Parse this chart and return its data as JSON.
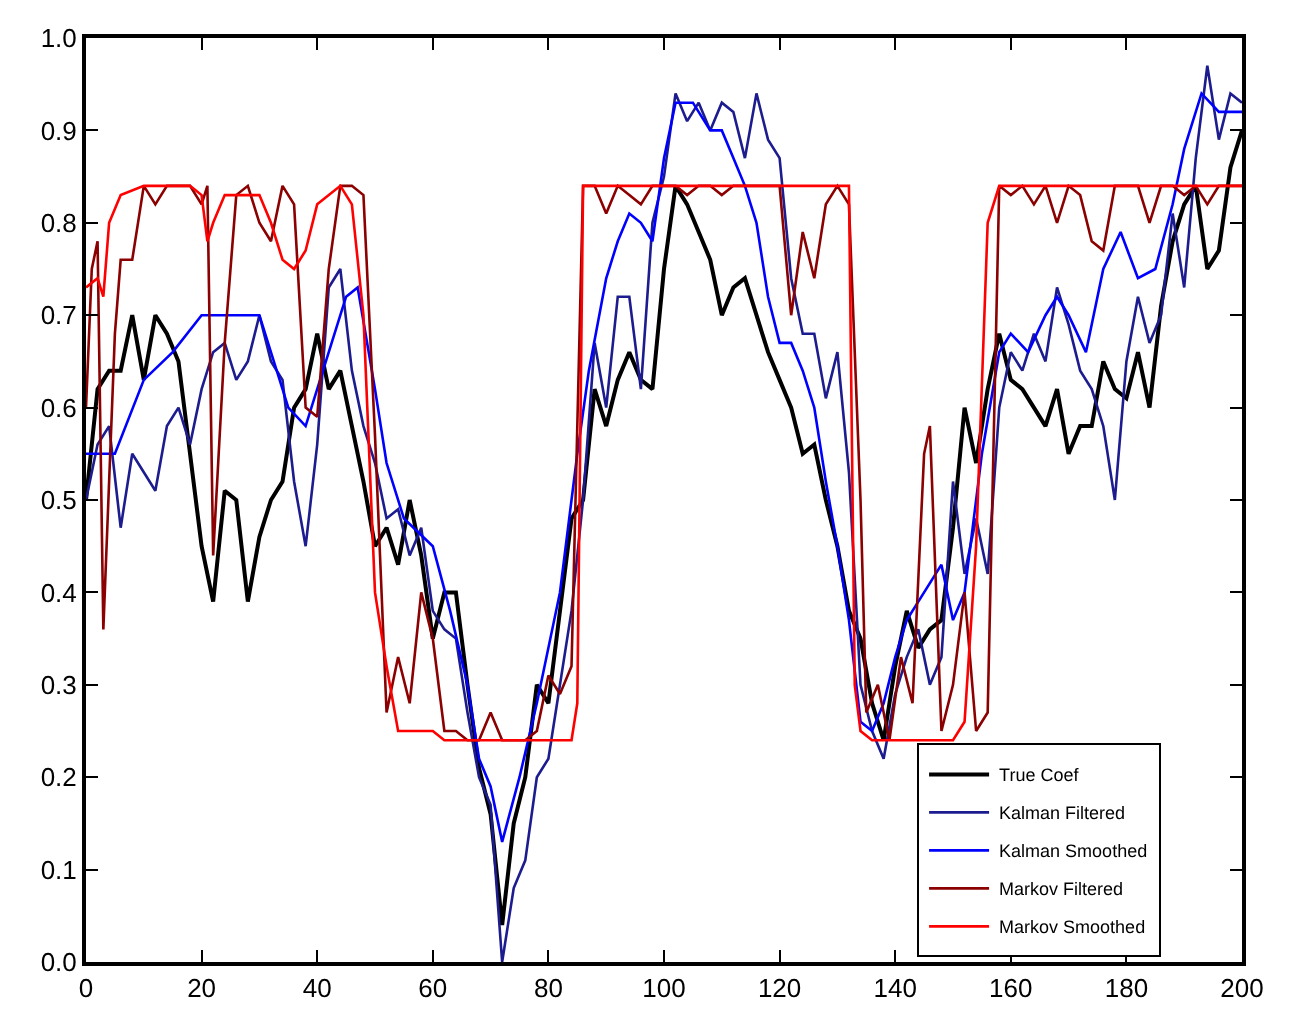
{
  "chart_data": {
    "type": "line",
    "xlim": [
      0,
      200
    ],
    "xticks": [
      0,
      20,
      40,
      60,
      80,
      100,
      120,
      140,
      160,
      180,
      200
    ],
    "ylim": [
      0,
      1
    ],
    "yticks": [
      {
        "value": 0,
        "label": "0.0"
      },
      0.1,
      0.2,
      0.3,
      0.4,
      0.5,
      0.6,
      0.7,
      0.8,
      0.9,
      {
        "value": 1,
        "label": "1.0"
      }
    ],
    "legend": "bottom right",
    "marker": "none",
    "line_style": "solid",
    "series": [
      {
        "name": "True Coef",
        "color": "#000000",
        "x": [
          0,
          2,
          4,
          6,
          8,
          10,
          12,
          14,
          16,
          18,
          20,
          22,
          24,
          26,
          28,
          30,
          32,
          34,
          36,
          38,
          40,
          42,
          44,
          46,
          48,
          50,
          52,
          54,
          56,
          58,
          60,
          62,
          64,
          66,
          68,
          70,
          72,
          74,
          76,
          78,
          80,
          82,
          84,
          86,
          88,
          90,
          92,
          94,
          96,
          98,
          100,
          102,
          104,
          106,
          108,
          110,
          112,
          114,
          116,
          118,
          120,
          122,
          124,
          126,
          128,
          130,
          132,
          134,
          136,
          138,
          140,
          142,
          144,
          146,
          148,
          150,
          152,
          154,
          156,
          158,
          160,
          162,
          164,
          166,
          168,
          170,
          172,
          174,
          176,
          178,
          180,
          182,
          184,
          186,
          188,
          190,
          192,
          194,
          196,
          198,
          200
        ],
        "values": [
          0.5,
          0.62,
          0.64,
          0.64,
          0.7,
          0.63,
          0.7,
          0.68,
          0.65,
          0.55,
          0.45,
          0.39,
          0.51,
          0.5,
          0.39,
          0.46,
          0.5,
          0.52,
          0.6,
          0.62,
          0.68,
          0.62,
          0.64,
          0.58,
          0.52,
          0.45,
          0.47,
          0.43,
          0.5,
          0.44,
          0.35,
          0.4,
          0.4,
          0.3,
          0.21,
          0.16,
          0.04,
          0.15,
          0.2,
          0.3,
          0.28,
          0.38,
          0.48,
          0.5,
          0.62,
          0.58,
          0.63,
          0.66,
          0.63,
          0.62,
          0.75,
          0.84,
          0.82,
          0.79,
          0.76,
          0.7,
          0.73,
          0.74,
          0.7,
          0.66,
          0.63,
          0.6,
          0.55,
          0.56,
          0.5,
          0.45,
          0.38,
          0.35,
          0.28,
          0.24,
          0.32,
          0.38,
          0.34,
          0.36,
          0.37,
          0.47,
          0.6,
          0.54,
          0.62,
          0.68,
          0.63,
          0.62,
          0.6,
          0.58,
          0.62,
          0.55,
          0.58,
          0.58,
          0.65,
          0.62,
          0.61,
          0.66,
          0.6,
          0.71,
          0.78,
          0.82,
          0.84,
          0.75,
          0.77,
          0.86,
          0.9
        ]
      },
      {
        "name": "Kalman Filtered",
        "color": "#1c1c8f",
        "x": [
          0,
          2,
          4,
          6,
          8,
          10,
          12,
          14,
          16,
          18,
          20,
          22,
          24,
          26,
          28,
          30,
          32,
          34,
          36,
          38,
          40,
          42,
          44,
          46,
          48,
          50,
          52,
          54,
          56,
          58,
          60,
          62,
          64,
          66,
          68,
          70,
          72,
          74,
          76,
          78,
          80,
          82,
          84,
          86,
          88,
          90,
          92,
          94,
          96,
          98,
          100,
          102,
          104,
          106,
          108,
          110,
          112,
          114,
          116,
          118,
          120,
          122,
          124,
          126,
          128,
          130,
          132,
          134,
          136,
          138,
          140,
          142,
          144,
          146,
          148,
          150,
          152,
          154,
          156,
          158,
          160,
          162,
          164,
          166,
          168,
          170,
          172,
          174,
          176,
          178,
          180,
          182,
          184,
          186,
          188,
          190,
          192,
          194,
          196,
          198,
          200
        ],
        "values": [
          0.5,
          0.56,
          0.58,
          0.47,
          0.55,
          0.53,
          0.51,
          0.58,
          0.6,
          0.56,
          0.62,
          0.66,
          0.67,
          0.63,
          0.65,
          0.7,
          0.65,
          0.63,
          0.52,
          0.45,
          0.56,
          0.73,
          0.75,
          0.64,
          0.58,
          0.54,
          0.48,
          0.49,
          0.44,
          0.47,
          0.38,
          0.36,
          0.35,
          0.27,
          0.2,
          0.17,
          0.0,
          0.08,
          0.11,
          0.2,
          0.22,
          0.3,
          0.38,
          0.5,
          0.67,
          0.6,
          0.72,
          0.72,
          0.62,
          0.8,
          0.85,
          0.94,
          0.91,
          0.93,
          0.9,
          0.93,
          0.92,
          0.87,
          0.94,
          0.89,
          0.87,
          0.74,
          0.68,
          0.68,
          0.61,
          0.66,
          0.53,
          0.3,
          0.25,
          0.22,
          0.29,
          0.33,
          0.36,
          0.3,
          0.33,
          0.52,
          0.42,
          0.48,
          0.42,
          0.6,
          0.66,
          0.64,
          0.68,
          0.65,
          0.73,
          0.69,
          0.64,
          0.62,
          0.58,
          0.5,
          0.65,
          0.72,
          0.67,
          0.7,
          0.81,
          0.73,
          0.87,
          0.97,
          0.89,
          0.94,
          0.93
        ]
      },
      {
        "name": "Kalman Smoothed",
        "color": "#0000ff",
        "x": [
          0,
          5,
          10,
          15,
          20,
          25,
          30,
          35,
          38,
          42,
          45,
          47,
          50,
          52,
          55,
          60,
          63,
          66,
          68,
          70,
          72,
          75,
          78,
          82,
          85,
          87,
          90,
          92,
          94,
          96,
          98,
          100,
          102,
          105,
          108,
          110,
          112,
          114,
          116,
          118,
          120,
          122,
          124,
          126,
          128,
          130,
          132,
          134,
          136,
          138,
          140,
          142,
          145,
          148,
          150,
          152,
          155,
          158,
          160,
          163,
          166,
          168,
          170,
          173,
          176,
          179,
          182,
          185,
          188,
          190,
          193,
          196,
          200
        ],
        "values": [
          0.55,
          0.55,
          0.63,
          0.66,
          0.7,
          0.7,
          0.7,
          0.6,
          0.58,
          0.66,
          0.72,
          0.73,
          0.62,
          0.54,
          0.48,
          0.45,
          0.38,
          0.3,
          0.22,
          0.19,
          0.13,
          0.2,
          0.28,
          0.4,
          0.55,
          0.64,
          0.74,
          0.78,
          0.81,
          0.8,
          0.78,
          0.87,
          0.93,
          0.93,
          0.9,
          0.9,
          0.87,
          0.84,
          0.8,
          0.72,
          0.67,
          0.67,
          0.64,
          0.6,
          0.52,
          0.45,
          0.37,
          0.26,
          0.25,
          0.28,
          0.33,
          0.37,
          0.4,
          0.43,
          0.37,
          0.4,
          0.55,
          0.66,
          0.68,
          0.66,
          0.7,
          0.72,
          0.7,
          0.66,
          0.75,
          0.79,
          0.74,
          0.75,
          0.82,
          0.88,
          0.94,
          0.92,
          0.92
        ]
      },
      {
        "name": "Markov Filtered",
        "color": "#8b0000",
        "x": [
          0,
          1,
          2,
          3,
          5,
          6,
          8,
          10,
          12,
          14,
          16,
          18,
          20,
          21,
          22,
          24,
          26,
          28,
          30,
          32,
          34,
          36,
          38,
          40,
          42,
          44,
          46,
          48,
          50,
          52,
          54,
          56,
          58,
          60,
          62,
          64,
          66,
          68,
          70,
          72,
          74,
          76,
          78,
          80,
          82,
          84,
          86,
          88,
          90,
          92,
          94,
          96,
          98,
          100,
          102,
          104,
          106,
          108,
          110,
          112,
          114,
          116,
          118,
          120,
          122,
          124,
          126,
          128,
          130,
          132,
          134,
          135,
          137,
          139,
          141,
          143,
          145,
          146,
          148,
          150,
          152,
          154,
          156,
          158,
          160,
          162,
          164,
          166,
          168,
          170,
          172,
          174,
          176,
          178,
          180,
          182,
          184,
          186,
          188,
          190,
          192,
          194,
          196,
          198,
          200
        ],
        "values": [
          0.6,
          0.75,
          0.78,
          0.36,
          0.68,
          0.76,
          0.76,
          0.84,
          0.82,
          0.84,
          0.84,
          0.84,
          0.82,
          0.84,
          0.44,
          0.67,
          0.83,
          0.84,
          0.8,
          0.78,
          0.84,
          0.82,
          0.6,
          0.59,
          0.75,
          0.84,
          0.84,
          0.83,
          0.57,
          0.27,
          0.33,
          0.28,
          0.4,
          0.35,
          0.25,
          0.25,
          0.24,
          0.24,
          0.27,
          0.24,
          0.24,
          0.24,
          0.25,
          0.31,
          0.29,
          0.32,
          0.84,
          0.84,
          0.81,
          0.84,
          0.83,
          0.82,
          0.84,
          0.84,
          0.84,
          0.83,
          0.84,
          0.84,
          0.83,
          0.84,
          0.84,
          0.84,
          0.84,
          0.84,
          0.7,
          0.79,
          0.74,
          0.82,
          0.84,
          0.82,
          0.5,
          0.27,
          0.3,
          0.24,
          0.33,
          0.28,
          0.55,
          0.58,
          0.25,
          0.3,
          0.4,
          0.25,
          0.27,
          0.84,
          0.83,
          0.84,
          0.82,
          0.84,
          0.8,
          0.84,
          0.83,
          0.78,
          0.77,
          0.84,
          0.84,
          0.84,
          0.8,
          0.84,
          0.84,
          0.83,
          0.84,
          0.82,
          0.84,
          0.84,
          0.84
        ]
      },
      {
        "name": "Markov Smoothed",
        "color": "#ff0000",
        "x": [
          0,
          2,
          3,
          4,
          6,
          10,
          18,
          20,
          21,
          22,
          24,
          30,
          32,
          34,
          36,
          38,
          40,
          44,
          46,
          48,
          50,
          52,
          54,
          58,
          60,
          62,
          84,
          85,
          86,
          130,
          132,
          133,
          134,
          136,
          150,
          152,
          154,
          156,
          158,
          200
        ],
        "values": [
          0.73,
          0.74,
          0.72,
          0.8,
          0.83,
          0.84,
          0.84,
          0.83,
          0.78,
          0.8,
          0.83,
          0.83,
          0.8,
          0.76,
          0.75,
          0.77,
          0.82,
          0.84,
          0.82,
          0.7,
          0.4,
          0.32,
          0.25,
          0.25,
          0.25,
          0.24,
          0.24,
          0.28,
          0.84,
          0.84,
          0.84,
          0.3,
          0.25,
          0.24,
          0.24,
          0.26,
          0.45,
          0.8,
          0.84,
          0.84
        ]
      }
    ]
  }
}
